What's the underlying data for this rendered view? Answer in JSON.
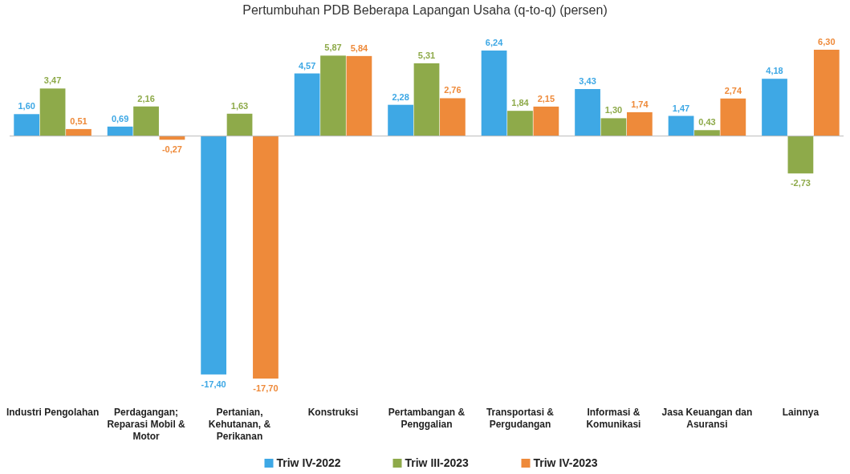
{
  "chart_data": {
    "type": "bar",
    "title": "Pertumbuhan PDB Beberapa Lapangan Usaha (q-to-q) (persen)",
    "relative": false,
    "categories": [
      "Industri Pengolahan",
      "Perdagangan; Reparasi Mobil & Motor",
      "Pertanian, Kehutanan, & Perikanan",
      "Konstruksi",
      "Pertambangan & Penggalian",
      "Transportasi & Pergudangan",
      "Informasi & Komunikasi",
      "Jasa Keuangan dan Asuransi",
      "Lainnya"
    ],
    "series": [
      {
        "name": "Triw IV-2022",
        "color": "#3ea8e5",
        "values": [
          1.6,
          0.69,
          -17.4,
          4.57,
          2.28,
          6.24,
          3.43,
          1.47,
          4.18
        ],
        "value_labels": [
          "1,60",
          "0,69",
          "-17,40",
          "4,57",
          "2,28",
          "6,24",
          "3,43",
          "1,47",
          "4,18"
        ]
      },
      {
        "name": "Triw III-2023",
        "color": "#8eaa4a",
        "values": [
          3.47,
          2.16,
          1.63,
          5.87,
          5.31,
          1.84,
          1.3,
          0.43,
          -2.73
        ],
        "value_labels": [
          "3,47",
          "2,16",
          "1,63",
          "5,87",
          "5,31",
          "1,84",
          "1,30",
          "0,43",
          "-2,73"
        ]
      },
      {
        "name": "Triw IV-2023",
        "color": "#ee8a3a",
        "values": [
          0.51,
          -0.27,
          -17.7,
          5.84,
          2.76,
          2.15,
          1.74,
          2.74,
          6.3
        ],
        "value_labels": [
          "0,51",
          "-0,27",
          "-17,70",
          "5,84",
          "2,76",
          "2,15",
          "1,74",
          "2,74",
          "6,30"
        ]
      }
    ],
    "legend": "bottom"
  }
}
